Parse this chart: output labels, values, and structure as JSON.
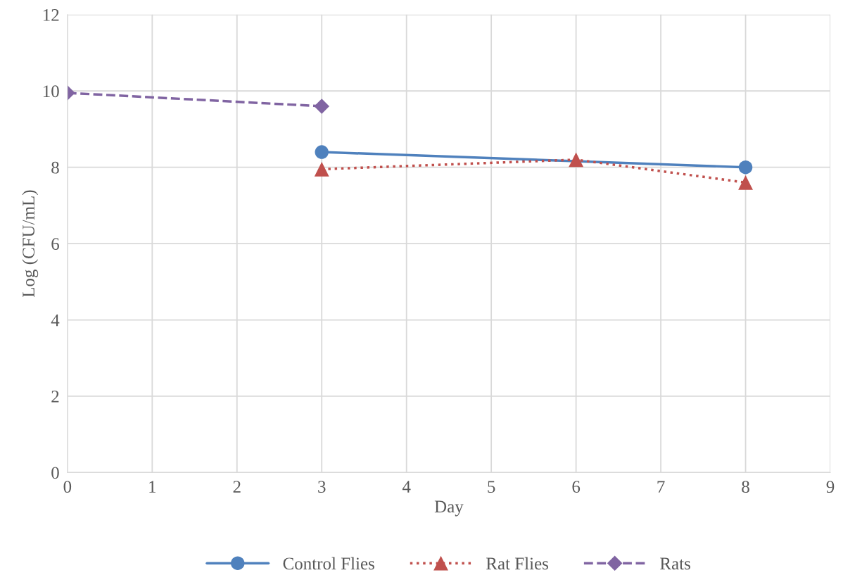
{
  "chart_data": {
    "type": "line",
    "xlabel": "Day",
    "ylabel": "Log (CFU/mL)",
    "series": [
      {
        "name": "Control Flies",
        "color": "#4f81bd",
        "marker": "circle",
        "line_style": "solid",
        "x": [
          3,
          8
        ],
        "values": [
          8.4,
          8.0
        ]
      },
      {
        "name": "Rat Flies",
        "color": "#c0504d",
        "marker": "triangle",
        "line_style": "dotted",
        "x": [
          3,
          6,
          8
        ],
        "values": [
          7.95,
          8.2,
          7.6
        ]
      },
      {
        "name": "Rats",
        "color": "#8064a2",
        "marker": "diamond",
        "line_style": "dashed",
        "x": [
          0,
          3
        ],
        "values": [
          9.95,
          9.6
        ]
      }
    ],
    "xlim": [
      0,
      9
    ],
    "xticks": [
      0,
      1,
      2,
      3,
      4,
      5,
      6,
      7,
      8,
      9
    ],
    "ylim": [
      0,
      12
    ],
    "yticks": [
      0,
      2,
      4,
      6,
      8,
      10,
      12
    ],
    "grid": true,
    "legend": "bottom"
  }
}
